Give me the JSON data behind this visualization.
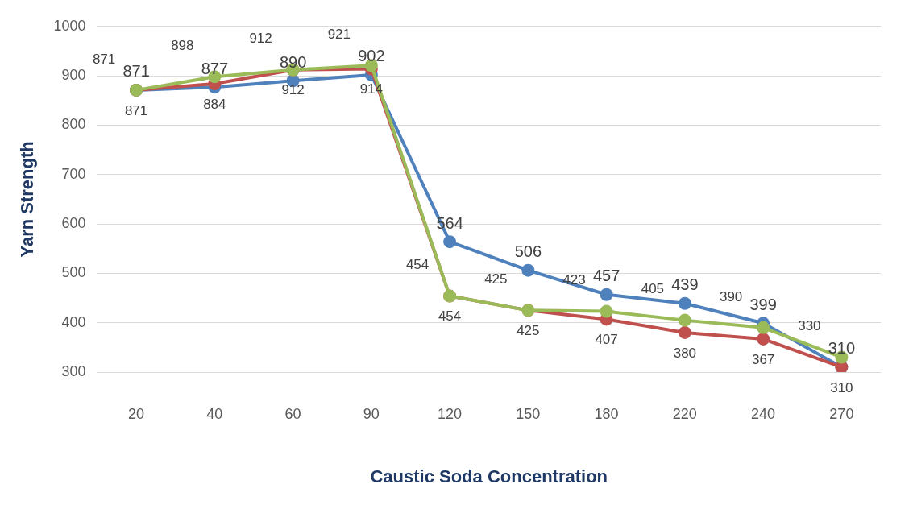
{
  "chart_data": {
    "type": "line",
    "xlabel": "Caustic Soda Concentration",
    "ylabel": "Yarn Strength",
    "categories": [
      "20",
      "40",
      "60",
      "90",
      "120",
      "150",
      "180",
      "220",
      "240",
      "270"
    ],
    "series": [
      {
        "color": "#4f81bd",
        "values": [
          871,
          877,
          890,
          902,
          564,
          506,
          457,
          439,
          399,
          310
        ]
      },
      {
        "color": "#c0504d",
        "values": [
          871,
          884,
          912,
          914,
          454,
          425,
          407,
          380,
          367,
          310
        ]
      },
      {
        "color": "#9bbb59",
        "values": [
          871,
          898,
          912,
          921,
          454,
          425,
          423,
          405,
          390,
          330
        ]
      }
    ],
    "ylim": [
      300,
      1000
    ],
    "yticks": [
      300,
      400,
      500,
      600,
      700,
      800,
      900,
      1000
    ],
    "grid": "y",
    "legend": false,
    "marker": "circle",
    "line_style": "solid",
    "data_labels": true
  }
}
